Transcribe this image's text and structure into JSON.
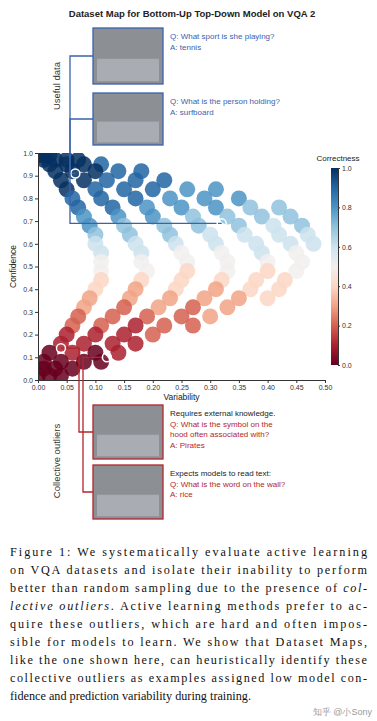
{
  "chart_data": {
    "type": "scatter",
    "title": "Dataset Map for Bottom-Up Top-Down Model on VQA 2",
    "x_label": "Variability",
    "y_label": "Confidence",
    "xlim": [
      0,
      0.5
    ],
    "ylim": [
      0,
      1
    ],
    "xticks": [
      {
        "value": 0,
        "label": "0.00"
      },
      {
        "value": 0.05,
        "label": "0.05"
      },
      {
        "value": 0.1,
        "label": "0.10"
      },
      {
        "value": 0.15,
        "label": "0.15"
      },
      {
        "value": 0.2,
        "label": "0.20"
      },
      {
        "value": 0.25,
        "label": "0.25"
      },
      {
        "value": 0.3,
        "label": "0.30"
      },
      {
        "value": 0.35,
        "label": "0.35"
      },
      {
        "value": 0.4,
        "label": "0.40"
      },
      {
        "value": 0.45,
        "label": "0.45"
      },
      {
        "value": 0.5,
        "label": "0.50"
      }
    ],
    "yticks": [
      {
        "value": 0,
        "label": "0.0"
      },
      {
        "value": 0.1,
        "label": "0.1"
      },
      {
        "value": 0.2,
        "label": "0.2"
      },
      {
        "value": 0.3,
        "label": "0.3"
      },
      {
        "value": 0.4,
        "label": "0.4"
      },
      {
        "value": 0.5,
        "label": "0.5"
      },
      {
        "value": 0.6,
        "label": "0.6"
      },
      {
        "value": 0.7,
        "label": "0.7"
      },
      {
        "value": 0.8,
        "label": "0.8"
      },
      {
        "value": 0.9,
        "label": "0.9"
      },
      {
        "value": 1,
        "label": "1.0"
      }
    ],
    "colorbar": {
      "label": "Correctness",
      "range": [
        0,
        1
      ],
      "ticks": [
        {
          "value": 0,
          "label": "0.0"
        },
        {
          "value": 0.2,
          "label": "0.2"
        },
        {
          "value": 0.4,
          "label": "0.4"
        },
        {
          "value": 0.6,
          "label": "0.6"
        },
        {
          "value": 0.8,
          "label": "0.8"
        },
        {
          "value": 1,
          "label": "1.0"
        }
      ]
    },
    "x": [
      0.0,
      0.01,
      0.02,
      0.01,
      0.03,
      0.05,
      0.07,
      0.02,
      0.05,
      0.08,
      0.11,
      0.03,
      0.06,
      0.1,
      0.14,
      0.18,
      0.04,
      0.08,
      0.12,
      0.17,
      0.22,
      0.05,
      0.1,
      0.15,
      0.2,
      0.26,
      0.31,
      0.06,
      0.11,
      0.17,
      0.23,
      0.29,
      0.35,
      0.07,
      0.13,
      0.19,
      0.25,
      0.31,
      0.37,
      0.42,
      0.08,
      0.14,
      0.2,
      0.27,
      0.33,
      0.39,
      0.44,
      0.09,
      0.15,
      0.22,
      0.28,
      0.35,
      0.41,
      0.46,
      0.1,
      0.16,
      0.23,
      0.3,
      0.36,
      0.42,
      0.47,
      0.1,
      0.17,
      0.24,
      0.31,
      0.38,
      0.44,
      0.48,
      0.11,
      0.18,
      0.25,
      0.32,
      0.39,
      0.45,
      0.11,
      0.18,
      0.26,
      0.33,
      0.4,
      0.46,
      0.11,
      0.19,
      0.26,
      0.33,
      0.4,
      0.45,
      0.11,
      0.18,
      0.25,
      0.32,
      0.38,
      0.43,
      0.1,
      0.17,
      0.24,
      0.31,
      0.37,
      0.42,
      0.09,
      0.16,
      0.23,
      0.29,
      0.35,
      0.4,
      0.08,
      0.15,
      0.21,
      0.27,
      0.33,
      0.07,
      0.13,
      0.19,
      0.25,
      0.3,
      0.06,
      0.11,
      0.17,
      0.22,
      0.27,
      0.05,
      0.1,
      0.15,
      0.2,
      0.04,
      0.08,
      0.13,
      0.17,
      0.02,
      0.06,
      0.1,
      0.14,
      0.01,
      0.04,
      0.08,
      0.11,
      0.01,
      0.03,
      0.06,
      0.0,
      0.02,
      0.04
    ],
    "y": [
      0.99,
      0.99,
      0.99,
      0.97,
      0.97,
      0.97,
      0.97,
      0.95,
      0.95,
      0.95,
      0.95,
      0.92,
      0.92,
      0.92,
      0.92,
      0.92,
      0.88,
      0.88,
      0.88,
      0.88,
      0.88,
      0.84,
      0.84,
      0.84,
      0.84,
      0.84,
      0.84,
      0.8,
      0.8,
      0.8,
      0.8,
      0.8,
      0.8,
      0.76,
      0.76,
      0.76,
      0.76,
      0.76,
      0.76,
      0.76,
      0.72,
      0.72,
      0.72,
      0.72,
      0.72,
      0.72,
      0.72,
      0.68,
      0.68,
      0.68,
      0.68,
      0.68,
      0.68,
      0.68,
      0.64,
      0.64,
      0.64,
      0.64,
      0.64,
      0.64,
      0.64,
      0.6,
      0.6,
      0.6,
      0.6,
      0.6,
      0.6,
      0.6,
      0.56,
      0.56,
      0.56,
      0.56,
      0.56,
      0.56,
      0.52,
      0.52,
      0.52,
      0.52,
      0.52,
      0.52,
      0.48,
      0.48,
      0.48,
      0.48,
      0.48,
      0.48,
      0.44,
      0.44,
      0.44,
      0.44,
      0.44,
      0.44,
      0.4,
      0.4,
      0.4,
      0.4,
      0.4,
      0.4,
      0.36,
      0.36,
      0.36,
      0.36,
      0.36,
      0.36,
      0.32,
      0.32,
      0.32,
      0.32,
      0.32,
      0.28,
      0.28,
      0.28,
      0.28,
      0.28,
      0.24,
      0.24,
      0.24,
      0.24,
      0.24,
      0.2,
      0.2,
      0.2,
      0.2,
      0.16,
      0.16,
      0.16,
      0.16,
      0.12,
      0.12,
      0.12,
      0.12,
      0.08,
      0.08,
      0.08,
      0.08,
      0.05,
      0.05,
      0.05,
      0.02,
      0.02,
      0.02
    ],
    "correctness": [
      1.0,
      1.0,
      1.0,
      1.0,
      1.0,
      1.0,
      1.0,
      1.0,
      1.0,
      1.0,
      0.9,
      1.0,
      1.0,
      1.0,
      0.9,
      0.9,
      1.0,
      1.0,
      0.9,
      0.9,
      0.9,
      1.0,
      0.9,
      0.9,
      0.9,
      0.8,
      0.8,
      0.9,
      0.9,
      0.9,
      0.8,
      0.8,
      0.8,
      0.9,
      0.9,
      0.8,
      0.8,
      0.8,
      0.7,
      0.7,
      0.8,
      0.8,
      0.8,
      0.7,
      0.7,
      0.7,
      0.7,
      0.8,
      0.7,
      0.7,
      0.7,
      0.7,
      0.6,
      0.7,
      0.7,
      0.7,
      0.7,
      0.6,
      0.6,
      0.6,
      0.6,
      0.6,
      0.6,
      0.6,
      0.6,
      0.6,
      0.6,
      0.6,
      0.6,
      0.6,
      0.5,
      0.5,
      0.6,
      0.5,
      0.5,
      0.5,
      0.5,
      0.5,
      0.5,
      0.5,
      0.5,
      0.5,
      0.4,
      0.5,
      0.4,
      0.5,
      0.4,
      0.4,
      0.4,
      0.4,
      0.4,
      0.4,
      0.4,
      0.3,
      0.4,
      0.3,
      0.4,
      0.4,
      0.3,
      0.3,
      0.3,
      0.3,
      0.3,
      0.4,
      0.3,
      0.2,
      0.3,
      0.2,
      0.3,
      0.2,
      0.2,
      0.2,
      0.2,
      0.3,
      0.2,
      0.2,
      0.1,
      0.2,
      0.2,
      0.1,
      0.1,
      0.1,
      0.2,
      0.1,
      0.1,
      0.1,
      0.1,
      0.0,
      0.1,
      0.0,
      0.1,
      0.0,
      0.0,
      0.0,
      0.0,
      0.0,
      0.0,
      0.0,
      0.0,
      0.0,
      0.0
    ]
  },
  "groups": [
    {
      "label": "Useful data",
      "color": "#3a62ad",
      "examples": [
        {
          "question": [
            "Q: What sport is she playing?"
          ],
          "answer": "A: tennis",
          "x": 0.065,
          "y": 0.91
        },
        {
          "question": [
            "Q: What is the person holding?"
          ],
          "answer": "A: surfboard",
          "x": 0.32,
          "y": 0.69
        }
      ]
    },
    {
      "label": "Collective outliers",
      "color": "#b3262b",
      "examples": [
        {
          "note": "Requires external knowledge.",
          "question": [
            "Q: What is the symbol on the",
            "hood often associated with?"
          ],
          "answer": "A: Pirates",
          "x": 0.04,
          "y": 0.14
        },
        {
          "note": "Expects models to read text:",
          "question": [
            "Q: What is the word on the wall?"
          ],
          "answer": "A: rice",
          "x": 0.12,
          "y": 0.1
        }
      ]
    }
  ],
  "caption": [
    [
      {
        "text": "Figure 1: We systematically evaluate active learning"
      }
    ],
    [
      {
        "text": "on VQA datasets and isolate their inability to perform"
      }
    ],
    [
      {
        "text": "better than random sampling due to the presence of "
      },
      {
        "text": "col-",
        "italic": true
      }
    ],
    [
      {
        "text": "lective outliers",
        "italic": true
      },
      {
        "text": ". Active learning methods prefer to ac-"
      }
    ],
    [
      {
        "text": "quire these outliers, which are hard and often impos-"
      }
    ],
    [
      {
        "text": "sible for models to learn. We show that Dataset Maps,"
      }
    ],
    [
      {
        "text": "like the one shown here, can heuristically identify these"
      }
    ],
    [
      {
        "text": "collective outliers as examples assigned low model con-"
      }
    ],
    [
      {
        "text": "fidence and prediction variability during training."
      }
    ]
  ],
  "watermark": "知乎 @小Sony"
}
